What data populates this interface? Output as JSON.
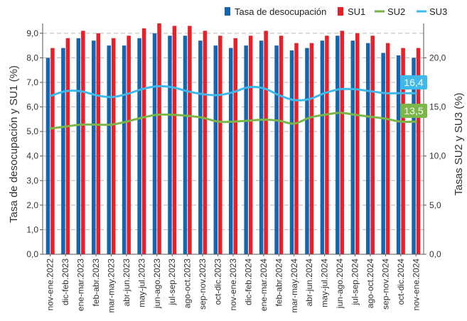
{
  "chart_data": {
    "type": "bar",
    "categories": [
      "nov-ene.2022",
      "dic-feb.2023",
      "ene-mar.2023",
      "feb-abr.2023",
      "mar-may.2023",
      "abr-jun.2023",
      "may-jul.2023",
      "jun-ago.2023",
      "jul-sep.2023",
      "ago-oct.2023",
      "sep-nov.2023",
      "oct-dic.2023",
      "nov-ene.2023",
      "dic-feb.2024",
      "ene-mar.2024",
      "feb-abr.2024",
      "mar-may.2024",
      "abr-jun.2024",
      "may-jul.2024",
      "jun-ago.2024",
      "jul-sep.2024",
      "ago-oct.2024",
      "sep-nov.2024",
      "oct-dic.2024",
      "nov-ene.2024"
    ],
    "tick_labels": [
      "nov-ene.2022",
      "dic-feb.2023",
      "ene-mar.2023",
      "feb-abr.2023",
      "mar-may.2023",
      "abr-jun.2023",
      "may-jul.2023",
      "jun-ago.2023",
      "jul-sep.2023",
      "ago-oct.2023",
      "sep-nov.2023",
      "oct-dic.2023",
      "nov-ene.2023",
      "dic-feb.2024",
      "ene-mar.2024",
      "feb-abr.2024",
      "mar-may.2024",
      "abr-jun.2024",
      "may-jul.2024",
      "jun-ago.2024",
      "jul-sep.2024",
      "ago-oct.2024",
      "sep-nov.2024",
      "oct-dic.2024",
      "nov-ene.2024"
    ],
    "series": [
      {
        "name": "Tasa de desocupación",
        "axis": "left",
        "kind": "bar",
        "color": "#1565b0",
        "values": [
          8.0,
          8.4,
          8.8,
          8.7,
          8.5,
          8.5,
          8.8,
          9.0,
          8.9,
          8.9,
          8.7,
          8.5,
          8.4,
          8.5,
          8.7,
          8.5,
          8.3,
          8.4,
          8.7,
          8.9,
          8.7,
          8.6,
          8.2,
          8.1,
          8.0
        ]
      },
      {
        "name": "SU1",
        "axis": "left",
        "kind": "bar",
        "color": "#e8202a",
        "values": [
          8.4,
          8.8,
          9.1,
          9.0,
          8.8,
          8.9,
          9.2,
          9.4,
          9.3,
          9.3,
          9.1,
          8.9,
          8.8,
          8.9,
          9.1,
          8.9,
          8.6,
          8.6,
          8.9,
          9.1,
          9.0,
          8.9,
          8.6,
          8.4,
          8.4
        ]
      },
      {
        "name": "SU2",
        "axis": "right",
        "kind": "line",
        "color": "#7ab648",
        "values": [
          12.8,
          13.0,
          13.2,
          13.2,
          13.2,
          13.5,
          13.9,
          14.2,
          14.2,
          14.1,
          13.9,
          13.5,
          13.5,
          13.6,
          13.7,
          13.6,
          13.3,
          13.9,
          14.2,
          14.4,
          14.2,
          14.0,
          13.8,
          13.5,
          13.5
        ]
      },
      {
        "name": "SU3",
        "axis": "right",
        "kind": "line",
        "color": "#3fb8ea",
        "values": [
          16.1,
          16.6,
          16.6,
          16.2,
          16.0,
          16.3,
          16.8,
          17.1,
          17.0,
          16.6,
          16.3,
          16.2,
          16.5,
          17.0,
          16.9,
          16.2,
          15.7,
          15.8,
          16.4,
          16.8,
          16.8,
          16.6,
          16.4,
          16.4,
          16.4
        ]
      }
    ],
    "ylabel": "Tasa de desocupación y SU1 (%)",
    "ylim": [
      0,
      9.4
    ],
    "yticks": [
      "0,0",
      "1,0",
      "2,0",
      "3,0",
      "4,0",
      "5,0",
      "6,0",
      "7,0",
      "8,0",
      "9,0"
    ],
    "y2label": "Tasas SU2 y SU3 (%)",
    "y2lim": [
      0,
      23.5
    ],
    "y2ticks": [
      "0,0",
      "5,0",
      "10,0",
      "15,0",
      "20,0"
    ],
    "annotations": [
      {
        "series": "SU3",
        "text": "16,4",
        "color": "#3fb8ea"
      },
      {
        "series": "SU2",
        "text": "13,5",
        "color": "#7ab648"
      }
    ],
    "grid": "horizontal dashed",
    "legend_position": "top-right"
  }
}
